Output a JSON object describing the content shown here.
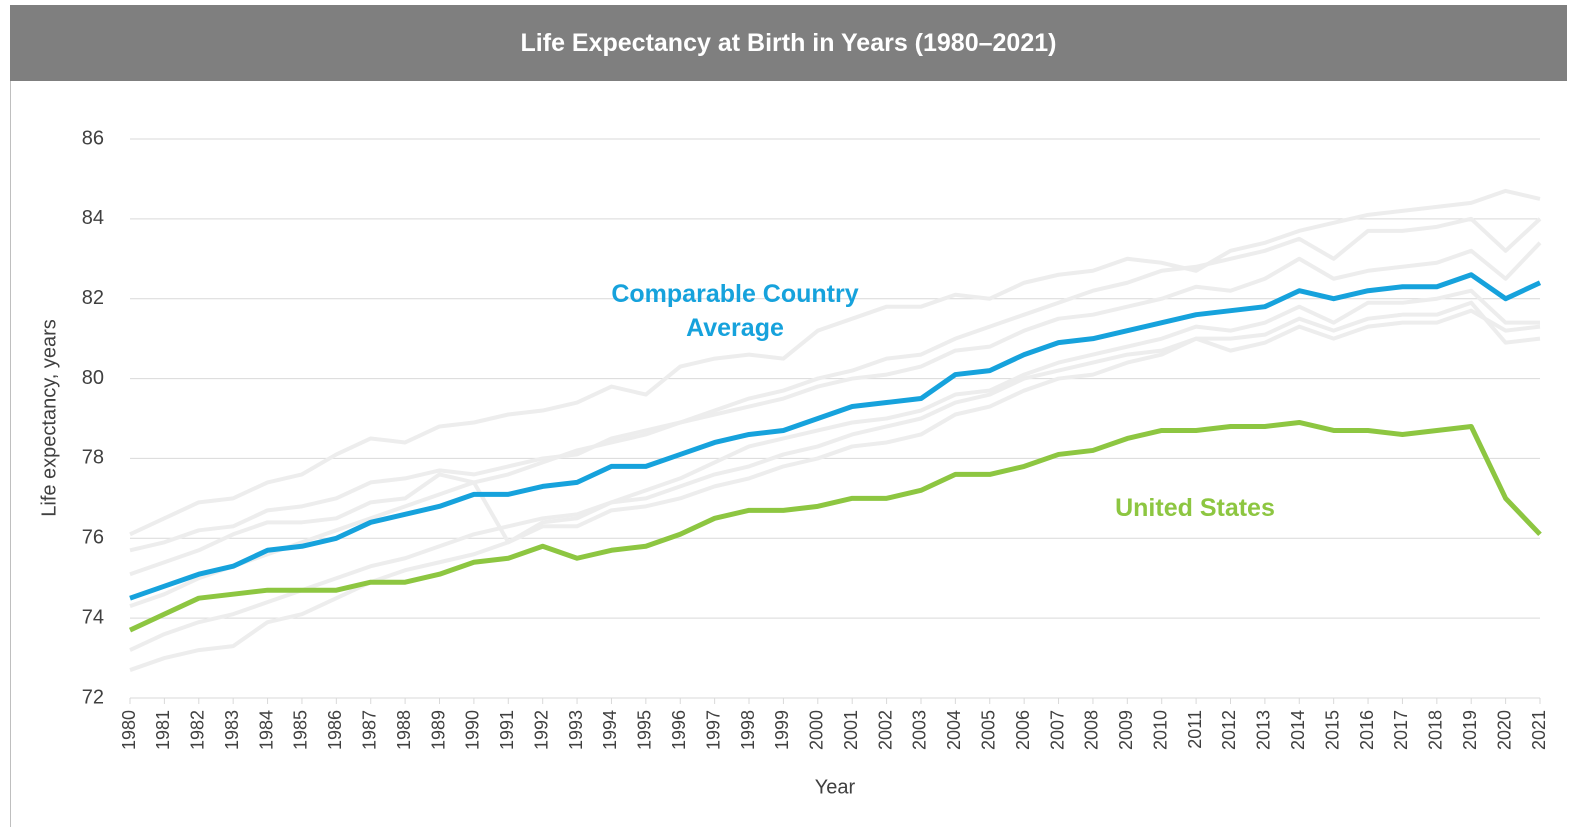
{
  "chart_data": {
    "type": "line",
    "title": "Life Expectancy at Birth in Years (1980–2021)",
    "x_label": "Year",
    "y_label": "Life expectancy, years",
    "x": [
      1980,
      1981,
      1982,
      1983,
      1984,
      1985,
      1986,
      1987,
      1988,
      1989,
      1990,
      1991,
      1992,
      1993,
      1994,
      1995,
      1996,
      1997,
      1998,
      1999,
      2000,
      2001,
      2002,
      2003,
      2004,
      2005,
      2006,
      2007,
      2008,
      2009,
      2010,
      2011,
      2012,
      2013,
      2014,
      2015,
      2016,
      2017,
      2018,
      2019,
      2020,
      2021
    ],
    "xlim": [
      1980,
      2021
    ],
    "xticks": [
      1980,
      1981,
      1982,
      1983,
      1984,
      1985,
      1986,
      1987,
      1988,
      1989,
      1990,
      1991,
      1992,
      1993,
      1994,
      1995,
      1996,
      1997,
      1998,
      1999,
      2000,
      2001,
      2002,
      2003,
      2004,
      2005,
      2006,
      2007,
      2008,
      2009,
      2010,
      2011,
      2012,
      2013,
      2014,
      2015,
      2016,
      2017,
      2018,
      2019,
      2020,
      2021
    ],
    "ylim": [
      72,
      86
    ],
    "yticks": [
      72,
      74,
      76,
      78,
      80,
      82,
      84,
      86
    ],
    "grid": true,
    "series": [
      {
        "color": "#ededed",
        "values": [
          76.1,
          76.5,
          76.9,
          77.0,
          77.4,
          77.6,
          78.1,
          78.5,
          78.4,
          78.8,
          78.9,
          79.1,
          79.2,
          79.4,
          79.8,
          79.6,
          80.3,
          80.5,
          80.6,
          80.5,
          81.2,
          81.5,
          81.8,
          81.8,
          82.1,
          82.0,
          82.4,
          82.6,
          82.7,
          83.0,
          82.9,
          82.7,
          83.2,
          83.4,
          83.7,
          83.9,
          84.1,
          84.2,
          84.3,
          84.4,
          84.7,
          84.5
        ]
      },
      {
        "color": "#ededed",
        "values": [
          75.7,
          75.9,
          76.2,
          76.3,
          76.7,
          76.8,
          77.0,
          77.4,
          77.5,
          77.7,
          77.6,
          77.8,
          78.0,
          78.1,
          78.5,
          78.7,
          78.9,
          79.1,
          79.3,
          79.5,
          79.8,
          80.0,
          80.1,
          80.3,
          80.7,
          80.8,
          81.2,
          81.5,
          81.6,
          81.8,
          82.0,
          82.3,
          82.2,
          82.5,
          83.0,
          82.5,
          82.7,
          82.8,
          82.9,
          83.2,
          82.5,
          83.4
        ]
      },
      {
        "color": "#ededed",
        "values": [
          74.3,
          74.6,
          75.0,
          75.3,
          75.6,
          75.9,
          76.2,
          76.5,
          76.8,
          77.1,
          77.4,
          77.6,
          77.9,
          78.2,
          78.4,
          78.6,
          78.9,
          79.2,
          79.5,
          79.7,
          80.0,
          80.2,
          80.5,
          80.6,
          81.0,
          81.3,
          81.6,
          81.9,
          82.2,
          82.4,
          82.7,
          82.8,
          83.0,
          83.2,
          83.5,
          83.0,
          83.7,
          83.7,
          83.8,
          84.0,
          83.2,
          84.0
        ]
      },
      {
        "color": "#ededed",
        "values": [
          73.2,
          73.6,
          73.9,
          74.1,
          74.4,
          74.7,
          75.0,
          75.3,
          75.5,
          75.8,
          76.1,
          76.3,
          76.5,
          76.6,
          76.9,
          77.0,
          77.3,
          77.6,
          77.8,
          78.1,
          78.3,
          78.6,
          78.8,
          79.0,
          79.4,
          79.6,
          80.0,
          80.2,
          80.4,
          80.6,
          80.7,
          81.0,
          81.0,
          81.1,
          81.5,
          81.2,
          81.5,
          81.6,
          81.6,
          81.9,
          80.9,
          81.0
        ]
      },
      {
        "color": "#ededed",
        "values": [
          72.7,
          73.0,
          73.2,
          73.3,
          73.9,
          74.1,
          74.5,
          74.9,
          75.2,
          75.4,
          75.6,
          75.9,
          76.3,
          76.3,
          76.7,
          76.8,
          77.0,
          77.3,
          77.5,
          77.8,
          78.0,
          78.3,
          78.4,
          78.6,
          79.1,
          79.3,
          79.7,
          80.0,
          80.1,
          80.4,
          80.6,
          81.0,
          80.7,
          80.9,
          81.3,
          81.0,
          81.3,
          81.4,
          81.4,
          81.7,
          81.2,
          81.3
        ]
      },
      {
        "color": "#ededed",
        "values": [
          75.1,
          75.4,
          75.7,
          76.1,
          76.4,
          76.4,
          76.5,
          76.9,
          77.0,
          77.6,
          77.4,
          75.9,
          76.4,
          76.5,
          76.9,
          77.2,
          77.5,
          77.9,
          78.3,
          78.5,
          78.7,
          78.9,
          79.0,
          79.2,
          79.6,
          79.7,
          80.1,
          80.4,
          80.6,
          80.8,
          81.0,
          81.3,
          81.2,
          81.4,
          81.8,
          81.4,
          81.9,
          81.9,
          82.0,
          82.2,
          81.4,
          81.4
        ]
      },
      {
        "name": "Comparable Country Average",
        "color": "#16a2dc",
        "values": [
          74.5,
          74.8,
          75.1,
          75.3,
          75.7,
          75.8,
          76.0,
          76.4,
          76.6,
          76.8,
          77.1,
          77.1,
          77.3,
          77.4,
          77.8,
          77.8,
          78.1,
          78.4,
          78.6,
          78.7,
          79.0,
          79.3,
          79.4,
          79.5,
          80.1,
          80.2,
          80.6,
          80.9,
          81.0,
          81.2,
          81.4,
          81.6,
          81.7,
          81.8,
          82.2,
          82.0,
          82.2,
          82.3,
          82.3,
          82.6,
          82.0,
          82.4
        ]
      },
      {
        "name": "United States",
        "color": "#8dc641",
        "values": [
          73.7,
          74.1,
          74.5,
          74.6,
          74.7,
          74.7,
          74.7,
          74.9,
          74.9,
          75.1,
          75.4,
          75.5,
          75.8,
          75.5,
          75.7,
          75.8,
          76.1,
          76.5,
          76.7,
          76.7,
          76.8,
          77.0,
          77.0,
          77.2,
          77.6,
          77.6,
          77.8,
          78.1,
          78.2,
          78.5,
          78.7,
          78.7,
          78.8,
          78.8,
          78.9,
          78.7,
          78.7,
          78.6,
          78.7,
          78.8,
          77.0,
          76.1
        ]
      }
    ]
  }
}
